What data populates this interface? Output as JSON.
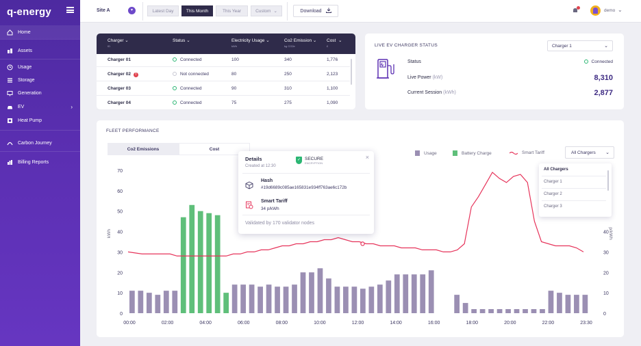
{
  "brand": {
    "logo": "q-energy"
  },
  "sidebar": {
    "items": [
      {
        "label": "Home",
        "icon": "home-icon"
      },
      {
        "label": "Assets",
        "icon": "assets-icon"
      },
      {
        "label": "Usage",
        "icon": "usage-icon"
      },
      {
        "label": "Storage",
        "icon": "storage-icon"
      },
      {
        "label": "Generation",
        "icon": "generation-icon"
      },
      {
        "label": "EV",
        "icon": "ev-icon",
        "chevron": "›"
      },
      {
        "label": "Heat Pump",
        "icon": "heat-pump-icon"
      },
      {
        "label": "Carbon Journey",
        "icon": "carbon-journey-icon"
      },
      {
        "label": "Billing Reports",
        "icon": "billing-reports-icon"
      }
    ]
  },
  "topbar": {
    "site": "Site A",
    "ranges": [
      "Latest Day",
      "This Month",
      "This Year",
      "Custom"
    ],
    "active_range": "This Month",
    "custom_chev": "⌄",
    "download": "Download",
    "user": "demo"
  },
  "table": {
    "headers": [
      {
        "label": "Charger",
        "unit": "ID"
      },
      {
        "label": "Status",
        "unit": ""
      },
      {
        "label": "Electricity Usage",
        "unit": "kWh"
      },
      {
        "label": "Co2 Emission",
        "unit": "kg CO2e"
      },
      {
        "label": "Cost",
        "unit": "£"
      }
    ],
    "rows": [
      {
        "name": "Charger 01",
        "status": "Connected",
        "connected": true,
        "warn": false,
        "usage": "100",
        "co2": "340",
        "cost": "1,776"
      },
      {
        "name": "Charger 02",
        "status": "Not connected",
        "connected": false,
        "warn": true,
        "usage": "80",
        "co2": "250",
        "cost": "2,123"
      },
      {
        "name": "Charger 03",
        "status": "Connected",
        "connected": true,
        "warn": false,
        "usage": "90",
        "co2": "310",
        "cost": "1,100"
      },
      {
        "name": "Charger 04",
        "status": "Connected",
        "connected": true,
        "warn": false,
        "usage": "75",
        "co2": "275",
        "cost": "1,090"
      }
    ],
    "warn_symbol": "!"
  },
  "live": {
    "title": "LIVE EV CHARGER STATUS",
    "selected": "Charger 1",
    "status_label": "Status",
    "status_value": "Connected",
    "power_label": "Live Power",
    "power_unit": "(kW)",
    "power_value": "8,310",
    "session_label": "Current Session",
    "session_unit": "(kWh)",
    "session_value": "2,877"
  },
  "fleet": {
    "title": "FLEET PERFORMANCE",
    "tabs": [
      "Co2 Emissions",
      "Cost"
    ],
    "legend": [
      {
        "label": "Usage",
        "color": "#9b8fb3"
      },
      {
        "label": "Battery Charge",
        "color": "#5fbf7a"
      },
      {
        "label": "Smart Tariff",
        "color": "#e6335a"
      }
    ],
    "charger_select": "All Chargers",
    "dropdown": [
      "All Chargers",
      "Charger 1",
      "Charger 2",
      "Charger 3"
    ],
    "tooltip": {
      "title": "Details",
      "created": "Created at 12:30",
      "secure": "SECURE",
      "secure_sub": "ENCRYPTION",
      "close": "×",
      "hash_label": "Hash",
      "hash_value": "#19d6689c085ae165831e934ff763ae6c172b",
      "tariff_label": "Smart Tariff",
      "tariff_value": "34 p/kWh",
      "footer": "Validated by 170 validator nodes"
    }
  },
  "chart_data": {
    "type": "bar",
    "ylabel_left": "kWh",
    "ylabel_right": "p/kWh",
    "ylim": [
      0,
      70
    ],
    "yticks": [
      0,
      10,
      20,
      30,
      40,
      50,
      60,
      70
    ],
    "right_yticks": [
      0,
      10,
      20,
      30,
      40
    ],
    "xticks": [
      "00:00",
      "02:00",
      "04:00",
      "06:00",
      "08:00",
      "10:00",
      "12:00",
      "14:00",
      "16:00",
      "18:00",
      "20:00",
      "22:00",
      "23:30"
    ],
    "usage": [
      11,
      11,
      10,
      9,
      11,
      11,
      0,
      0,
      0,
      0,
      0,
      0,
      14,
      14,
      14,
      13,
      14,
      13,
      13,
      14,
      20,
      20,
      22,
      17,
      13,
      13,
      13,
      12,
      13,
      14,
      16,
      19,
      19,
      19,
      19,
      21,
      0,
      0,
      0,
      0,
      0,
      0,
      0,
      0,
      0,
      0,
      0,
      0,
      0,
      11,
      10,
      9,
      9,
      9
    ],
    "battery": [
      0,
      0,
      0,
      0,
      0,
      0,
      47,
      53,
      50,
      49,
      48,
      10,
      0,
      0,
      0,
      0,
      0,
      0,
      0,
      0,
      0,
      0,
      0,
      0,
      0,
      0,
      0,
      0,
      0,
      0,
      0,
      0,
      0,
      0,
      0,
      0,
      0,
      0,
      0,
      0,
      0,
      0,
      0,
      0,
      0,
      0,
      0,
      0,
      0,
      0,
      0,
      0,
      0,
      0
    ],
    "usage_gap_bars": [
      [
        38,
        9
      ],
      [
        39,
        5
      ],
      [
        40,
        2
      ],
      [
        41,
        2
      ],
      [
        42,
        2
      ],
      [
        43,
        2
      ],
      [
        44,
        2
      ],
      [
        45,
        2
      ],
      [
        46,
        2
      ],
      [
        47,
        2
      ],
      [
        48,
        2
      ]
    ],
    "tariff": [
      30,
      29.5,
      29,
      29,
      29,
      29,
      29,
      28,
      28,
      28,
      28,
      28,
      28,
      28,
      28,
      29,
      29,
      30,
      30,
      31,
      31,
      32,
      33,
      33,
      34,
      34,
      35,
      35,
      36,
      36,
      37,
      36,
      35,
      35,
      34,
      34,
      33,
      33,
      33,
      32,
      32,
      32,
      31,
      31,
      31,
      30,
      30,
      31,
      34,
      52,
      57,
      63,
      69,
      66,
      64,
      67,
      68,
      64,
      45,
      35,
      34,
      33,
      33,
      33,
      32,
      30
    ],
    "highlight_point": {
      "x": "12:30",
      "y": 34
    }
  }
}
